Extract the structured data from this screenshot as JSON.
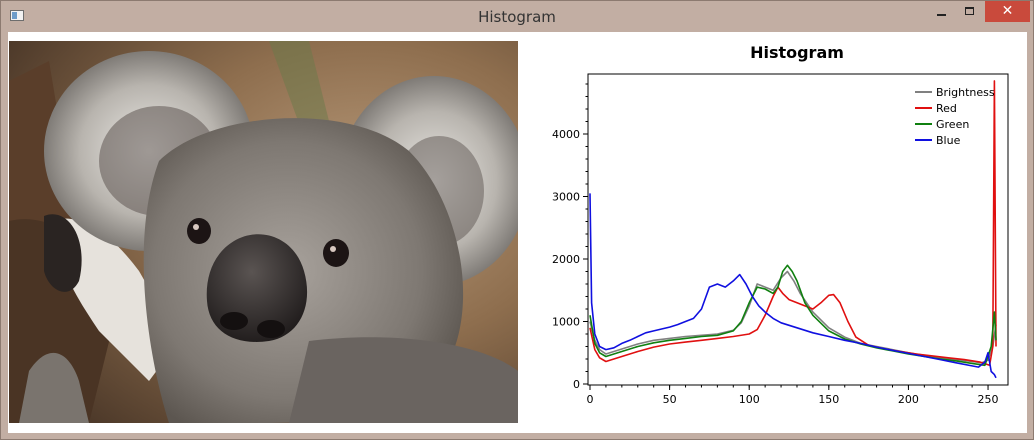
{
  "window": {
    "title": "Histogram",
    "close_glyph": "✕"
  },
  "image": {
    "subject": "koala"
  },
  "chart_data": {
    "type": "line",
    "title": "Histogram",
    "xlim": [
      0,
      255
    ],
    "ylim": [
      0,
      4900
    ],
    "xticks": [
      0,
      50,
      100,
      150,
      200,
      250
    ],
    "yticks": [
      0,
      1000,
      2000,
      3000,
      4000
    ],
    "legend_position": "top-right",
    "series": [
      {
        "name": "Brightness",
        "color": "#808080",
        "points": [
          [
            0,
            1000
          ],
          [
            3,
            700
          ],
          [
            6,
            550
          ],
          [
            10,
            480
          ],
          [
            20,
            560
          ],
          [
            30,
            640
          ],
          [
            40,
            700
          ],
          [
            50,
            730
          ],
          [
            60,
            760
          ],
          [
            70,
            780
          ],
          [
            80,
            800
          ],
          [
            90,
            860
          ],
          [
            95,
            980
          ],
          [
            100,
            1250
          ],
          [
            105,
            1600
          ],
          [
            110,
            1550
          ],
          [
            115,
            1500
          ],
          [
            120,
            1700
          ],
          [
            124,
            1800
          ],
          [
            128,
            1650
          ],
          [
            132,
            1450
          ],
          [
            140,
            1150
          ],
          [
            150,
            900
          ],
          [
            160,
            750
          ],
          [
            170,
            650
          ],
          [
            180,
            600
          ],
          [
            190,
            550
          ],
          [
            200,
            500
          ],
          [
            210,
            460
          ],
          [
            220,
            420
          ],
          [
            230,
            390
          ],
          [
            240,
            360
          ],
          [
            246,
            340
          ],
          [
            250,
            380
          ],
          [
            253,
            600
          ],
          [
            255,
            950
          ]
        ]
      },
      {
        "name": "Red",
        "color": "#e01010",
        "points": [
          [
            0,
            900
          ],
          [
            3,
            550
          ],
          [
            6,
            420
          ],
          [
            10,
            360
          ],
          [
            20,
            440
          ],
          [
            30,
            520
          ],
          [
            40,
            590
          ],
          [
            50,
            640
          ],
          [
            60,
            670
          ],
          [
            70,
            700
          ],
          [
            80,
            730
          ],
          [
            90,
            760
          ],
          [
            100,
            800
          ],
          [
            105,
            870
          ],
          [
            110,
            1100
          ],
          [
            115,
            1400
          ],
          [
            118,
            1550
          ],
          [
            121,
            1450
          ],
          [
            125,
            1350
          ],
          [
            130,
            1300
          ],
          [
            135,
            1250
          ],
          [
            140,
            1200
          ],
          [
            145,
            1300
          ],
          [
            150,
            1420
          ],
          [
            153,
            1430
          ],
          [
            157,
            1300
          ],
          [
            162,
            1000
          ],
          [
            167,
            750
          ],
          [
            175,
            620
          ],
          [
            185,
            560
          ],
          [
            195,
            520
          ],
          [
            205,
            480
          ],
          [
            215,
            450
          ],
          [
            225,
            420
          ],
          [
            235,
            390
          ],
          [
            245,
            350
          ],
          [
            251,
            300
          ],
          [
            253,
            600
          ],
          [
            254,
            4850
          ],
          [
            255,
            600
          ]
        ]
      },
      {
        "name": "Green",
        "color": "#108010",
        "points": [
          [
            0,
            1100
          ],
          [
            3,
            650
          ],
          [
            6,
            500
          ],
          [
            10,
            440
          ],
          [
            20,
            520
          ],
          [
            30,
            600
          ],
          [
            40,
            660
          ],
          [
            50,
            700
          ],
          [
            60,
            730
          ],
          [
            70,
            760
          ],
          [
            80,
            780
          ],
          [
            90,
            850
          ],
          [
            95,
            1000
          ],
          [
            100,
            1300
          ],
          [
            105,
            1550
          ],
          [
            110,
            1520
          ],
          [
            115,
            1450
          ],
          [
            118,
            1550
          ],
          [
            121,
            1800
          ],
          [
            124,
            1900
          ],
          [
            127,
            1800
          ],
          [
            130,
            1650
          ],
          [
            135,
            1300
          ],
          [
            140,
            1100
          ],
          [
            150,
            850
          ],
          [
            160,
            720
          ],
          [
            170,
            640
          ],
          [
            180,
            580
          ],
          [
            190,
            530
          ],
          [
            200,
            480
          ],
          [
            210,
            440
          ],
          [
            220,
            400
          ],
          [
            230,
            370
          ],
          [
            240,
            330
          ],
          [
            248,
            300
          ],
          [
            252,
            600
          ],
          [
            254,
            1150
          ],
          [
            255,
            700
          ]
        ]
      },
      {
        "name": "Blue",
        "color": "#1010e0",
        "points": [
          [
            0,
            3050
          ],
          [
            1,
            1300
          ],
          [
            3,
            800
          ],
          [
            6,
            600
          ],
          [
            10,
            550
          ],
          [
            15,
            580
          ],
          [
            20,
            650
          ],
          [
            25,
            700
          ],
          [
            30,
            760
          ],
          [
            35,
            820
          ],
          [
            40,
            850
          ],
          [
            45,
            880
          ],
          [
            50,
            910
          ],
          [
            55,
            950
          ],
          [
            60,
            1000
          ],
          [
            65,
            1050
          ],
          [
            70,
            1200
          ],
          [
            75,
            1550
          ],
          [
            80,
            1600
          ],
          [
            85,
            1550
          ],
          [
            90,
            1650
          ],
          [
            94,
            1750
          ],
          [
            98,
            1600
          ],
          [
            102,
            1400
          ],
          [
            106,
            1250
          ],
          [
            110,
            1150
          ],
          [
            115,
            1050
          ],
          [
            120,
            980
          ],
          [
            130,
            900
          ],
          [
            140,
            820
          ],
          [
            150,
            760
          ],
          [
            160,
            700
          ],
          [
            170,
            650
          ],
          [
            180,
            590
          ],
          [
            190,
            540
          ],
          [
            200,
            490
          ],
          [
            210,
            440
          ],
          [
            220,
            390
          ],
          [
            230,
            340
          ],
          [
            240,
            290
          ],
          [
            244,
            270
          ],
          [
            248,
            350
          ],
          [
            250,
            500
          ],
          [
            252,
            200
          ],
          [
            254,
            150
          ],
          [
            255,
            100
          ]
        ]
      }
    ]
  }
}
